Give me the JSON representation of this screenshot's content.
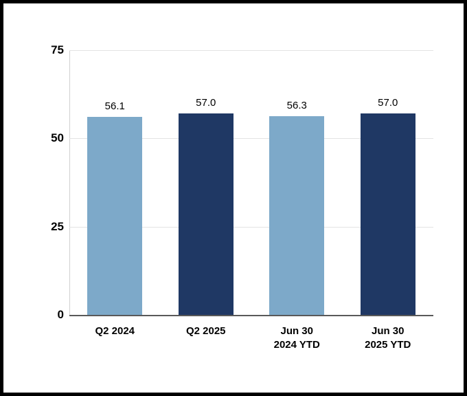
{
  "chart_data": {
    "type": "bar",
    "categories": [
      "Q2 2024",
      "Q2 2025",
      "Jun 30\n2024 YTD",
      "Jun 30\n2025 YTD"
    ],
    "values": [
      56.1,
      57.0,
      56.3,
      57.0
    ],
    "value_labels": [
      "56.1",
      "57.0",
      "56.3",
      "57.0"
    ],
    "bar_colors": [
      "#7da9c9",
      "#1f3864",
      "#7da9c9",
      "#1f3864"
    ],
    "title": "",
    "xlabel": "",
    "ylabel": "",
    "ylim": [
      0,
      75
    ],
    "yticks": [
      0,
      25,
      50,
      75
    ],
    "ytick_labels": [
      "0",
      "25",
      "50",
      "75"
    ],
    "grid": "horizontal",
    "legend": "none",
    "colors": {
      "light_blue": "#7da9c9",
      "dark_navy": "#1f3864",
      "gridline": "#e3e3e3",
      "axis_line": "#595959",
      "frame_border": "#000000",
      "background": "#ffffff"
    }
  }
}
